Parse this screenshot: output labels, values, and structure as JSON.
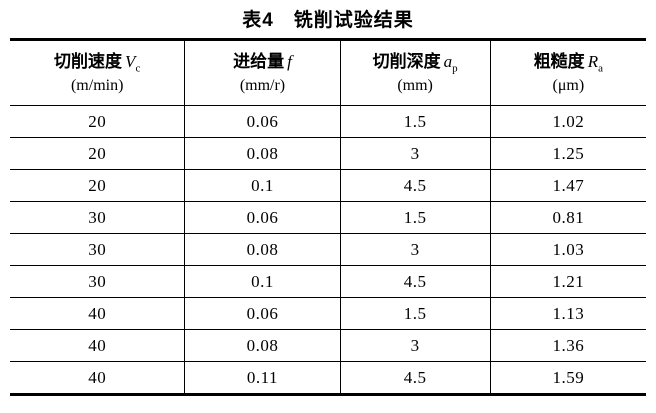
{
  "title": "表4　铣削试验结果",
  "table": {
    "headers": [
      {
        "label": "切削速度",
        "symbol": "V",
        "symbol_sub": "c",
        "unit": "(m/min)"
      },
      {
        "label": "进给量",
        "symbol": "f",
        "symbol_sub": "",
        "unit": "(mm/r)"
      },
      {
        "label": "切削深度",
        "symbol": "a",
        "symbol_sub": "p",
        "unit": "(mm)"
      },
      {
        "label": "粗糙度",
        "symbol": "R",
        "symbol_sub": "a",
        "unit": "(μm)"
      }
    ],
    "rows": [
      [
        "20",
        "0.06",
        "1.5",
        "1.02"
      ],
      [
        "20",
        "0.08",
        "3",
        "1.25"
      ],
      [
        "20",
        "0.1",
        "4.5",
        "1.47"
      ],
      [
        "30",
        "0.06",
        "1.5",
        "0.81"
      ],
      [
        "30",
        "0.08",
        "3",
        "1.03"
      ],
      [
        "30",
        "0.1",
        "4.5",
        "1.21"
      ],
      [
        "40",
        "0.06",
        "1.5",
        "1.13"
      ],
      [
        "40",
        "0.08",
        "3",
        "1.36"
      ],
      [
        "40",
        "0.11",
        "4.5",
        "1.59"
      ]
    ]
  }
}
